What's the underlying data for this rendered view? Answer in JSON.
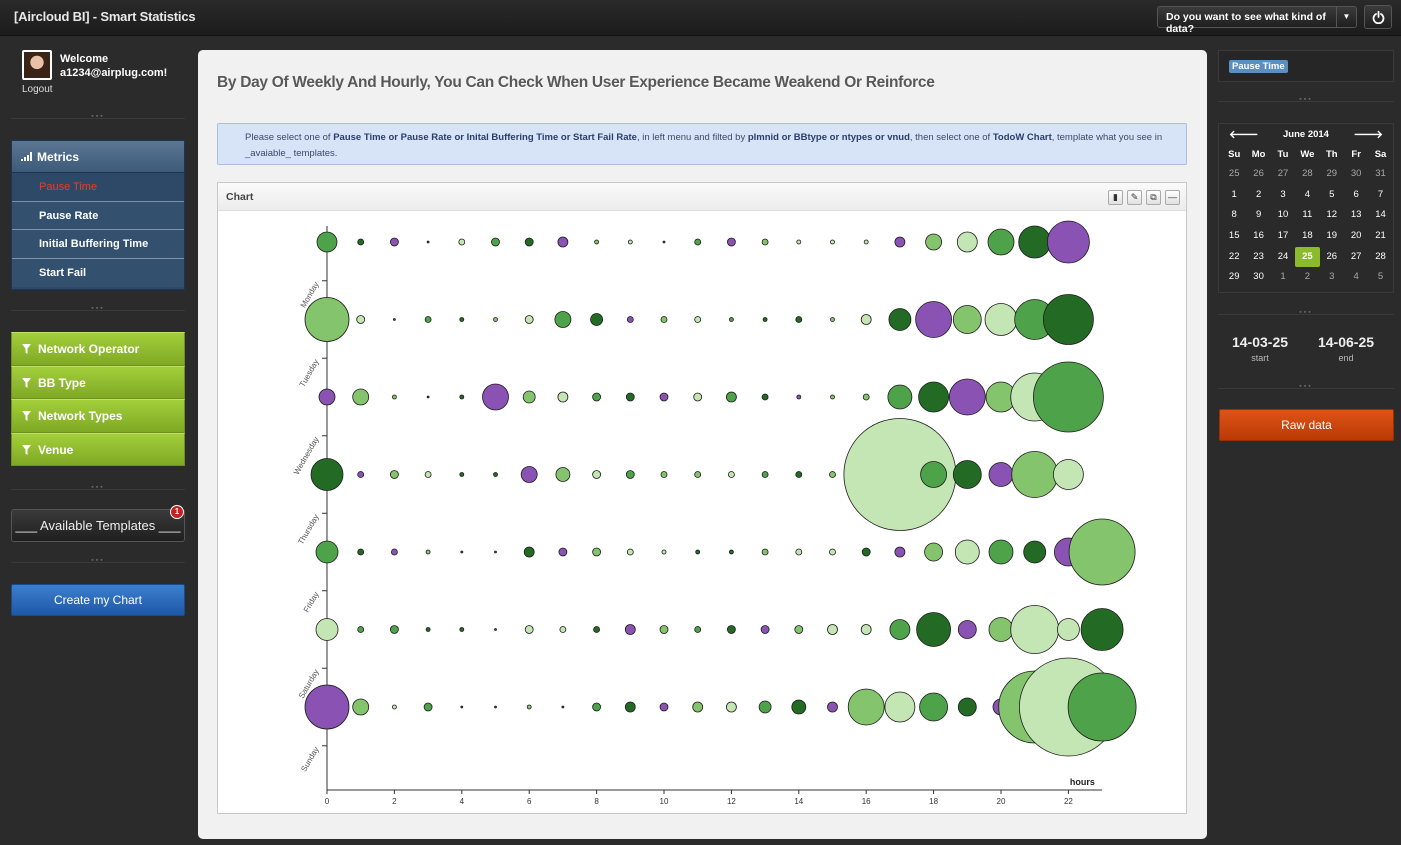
{
  "header": {
    "title": "[Aircloud BI] - Smart Statistics",
    "data_select": "Do you want to see what kind of data?"
  },
  "user": {
    "welcome": "Welcome",
    "email": "a1234@airplug.com!",
    "logout": "Logout"
  },
  "metrics": {
    "title": "Metrics",
    "items": [
      "Pause Time",
      "Pause Rate",
      "Initial Buffering Time",
      "Start Fail"
    ],
    "active_index": 0
  },
  "filters": [
    "Network Operator",
    "BB Type",
    "Network Types",
    "Venue"
  ],
  "templates": {
    "label": "___ Available Templates ___",
    "badge": "1"
  },
  "create_button": "Create my Chart",
  "main": {
    "heading": "By Day Of Weekly And Hourly, You Can Check When User Experience Became Weakend Or Reinforce",
    "info": {
      "p1": "Please select one of ",
      "b1": "Pause Time or Pause Rate or Inital Buffering Time or Start Fail Rate",
      "p2": ", in left menu and filted by ",
      "b2": "plmnid or BBtype or ntypes or vnud",
      "p3": ", then select one of ",
      "b3": "TodoW Chart",
      "p4": ", template what you see in",
      "p5": "_avaiable_ templates."
    },
    "chart_title": "Chart"
  },
  "right_panel": {
    "tag": "Pause Time",
    "calendar": {
      "month_label": "June 2014",
      "weekdays": [
        "Su",
        "Mo",
        "Tu",
        "We",
        "Th",
        "Fr",
        "Sa"
      ],
      "days": [
        "25",
        "26",
        "27",
        "28",
        "29",
        "30",
        "31",
        "1",
        "2",
        "3",
        "4",
        "5",
        "6",
        "7",
        "8",
        "9",
        "10",
        "11",
        "12",
        "13",
        "14",
        "15",
        "16",
        "17",
        "18",
        "19",
        "20",
        "21",
        "22",
        "23",
        "24",
        "25",
        "26",
        "27",
        "28",
        "29",
        "30",
        "1",
        "2",
        "3",
        "4",
        "5"
      ],
      "muted_leading": 7,
      "muted_trailing": 5,
      "selected": "25"
    },
    "start": "14-03-25",
    "start_label": "start",
    "end": "14-06-25",
    "end_label": "end",
    "raw_button": "Raw data"
  },
  "colors": {
    "dark_green": "#236b24",
    "mid_green": "#4ea34a",
    "light_green": "#84c46c",
    "pale_green": "#c4e6b4",
    "purple": "#8a52b2"
  },
  "chart_data": {
    "type": "scatter",
    "xlabel": "hours",
    "x_ticks": [
      0,
      2,
      4,
      6,
      8,
      10,
      12,
      14,
      16,
      18,
      20,
      22
    ],
    "xlim": [
      0,
      23
    ],
    "row_labels": [
      "Monday",
      "Tuesday",
      "Wednesday",
      "Thursday",
      "Friday",
      "Saturday",
      "Sunday"
    ],
    "rows": [
      {
        "sizes": [
          10,
          3,
          4,
          1,
          3,
          4,
          4,
          5,
          2,
          2,
          1,
          3,
          4,
          3,
          2,
          2,
          2,
          5,
          8,
          10,
          13,
          16,
          21,
          0
        ],
        "colors": [
          "m",
          "d",
          "p",
          "d",
          "l",
          "m",
          "d",
          "p",
          "a",
          "l",
          "d",
          "m",
          "p",
          "a",
          "l",
          "l",
          "l",
          "p",
          "a",
          "l",
          "m",
          "d",
          "p",
          "p"
        ]
      },
      {
        "sizes": [
          22,
          4,
          1,
          3,
          2,
          2,
          4,
          8,
          6,
          3,
          3,
          3,
          2,
          2,
          3,
          2,
          5,
          11,
          18,
          14,
          16,
          20,
          25,
          0
        ],
        "colors": [
          "a",
          "l",
          "d",
          "m",
          "d",
          "a",
          "l",
          "m",
          "d",
          "p",
          "a",
          "l",
          "m",
          "d",
          "d",
          "a",
          "l",
          "d",
          "p",
          "a",
          "l",
          "m",
          "d",
          "d"
        ]
      },
      {
        "sizes": [
          8,
          8,
          2,
          1,
          2,
          13,
          6,
          5,
          4,
          4,
          4,
          4,
          5,
          3,
          2,
          2,
          3,
          12,
          15,
          18,
          15,
          24,
          35,
          0
        ],
        "colors": [
          "p",
          "a",
          "a",
          "d",
          "d",
          "p",
          "a",
          "l",
          "m",
          "d",
          "p",
          "l",
          "m",
          "d",
          "p",
          "a",
          "a",
          "m",
          "d",
          "p",
          "a",
          "l",
          "m",
          "m"
        ]
      },
      {
        "sizes": [
          16,
          3,
          4,
          3,
          2,
          2,
          8,
          7,
          4,
          4,
          3,
          3,
          3,
          3,
          3,
          3,
          3,
          56,
          13,
          14,
          12,
          23,
          15,
          0
        ],
        "colors": [
          "d",
          "p",
          "a",
          "l",
          "d",
          "d",
          "p",
          "a",
          "l",
          "m",
          "a",
          "a",
          "l",
          "m",
          "d",
          "a",
          "p",
          "l",
          "m",
          "d",
          "p",
          "a",
          "l",
          "l"
        ]
      },
      {
        "sizes": [
          11,
          3,
          3,
          2,
          1,
          1,
          5,
          4,
          4,
          3,
          2,
          2,
          2,
          3,
          3,
          3,
          4,
          5,
          9,
          12,
          12,
          11,
          14,
          33
        ],
        "colors": [
          "m",
          "d",
          "p",
          "a",
          "d",
          "d",
          "d",
          "p",
          "a",
          "l",
          "l",
          "d",
          "d",
          "a",
          "l",
          "l",
          "d",
          "p",
          "a",
          "l",
          "m",
          "d",
          "p",
          "a"
        ]
      },
      {
        "sizes": [
          11,
          3,
          4,
          2,
          2,
          1,
          4,
          3,
          3,
          5,
          4,
          3,
          4,
          4,
          4,
          5,
          5,
          10,
          17,
          9,
          12,
          24,
          11,
          21
        ],
        "colors": [
          "l",
          "m",
          "m",
          "d",
          "d",
          "d",
          "l",
          "l",
          "d",
          "p",
          "a",
          "m",
          "d",
          "p",
          "a",
          "l",
          "l",
          "m",
          "d",
          "p",
          "a",
          "l",
          "l",
          "d"
        ]
      },
      {
        "sizes": [
          22,
          8,
          2,
          4,
          1,
          1,
          2,
          1,
          4,
          5,
          4,
          5,
          5,
          6,
          7,
          5,
          18,
          15,
          14,
          9,
          8,
          36,
          49,
          34
        ],
        "colors": [
          "p",
          "a",
          "l",
          "m",
          "d",
          "d",
          "a",
          "d",
          "m",
          "d",
          "p",
          "a",
          "l",
          "m",
          "d",
          "p",
          "a",
          "l",
          "m",
          "d",
          "p",
          "a",
          "l",
          "m"
        ]
      }
    ]
  }
}
